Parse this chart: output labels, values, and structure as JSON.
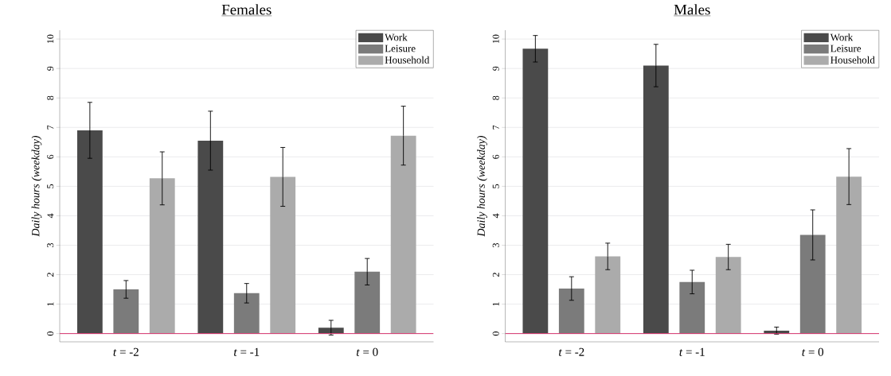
{
  "chart_data": [
    {
      "type": "bar",
      "title": "Females",
      "ylabel": "Daily hours (weekday)",
      "categories": [
        "*t* = -2",
        "*t* = -1",
        "*t* = 0"
      ],
      "series": [
        {
          "name": "Work",
          "color": "#4a4a4a",
          "values": [
            6.9,
            6.55,
            0.2
          ],
          "errors": [
            0.95,
            1.0,
            0.25
          ]
        },
        {
          "name": "Leisure",
          "color": "#7b7b7b",
          "values": [
            1.5,
            1.37,
            2.1
          ],
          "errors": [
            0.3,
            0.33,
            0.45
          ]
        },
        {
          "name": "Household",
          "color": "#ababab",
          "values": [
            5.27,
            5.32,
            6.72
          ],
          "errors": [
            0.9,
            1.0,
            1.0
          ]
        }
      ],
      "ylim": [
        -0.28,
        10.3
      ],
      "yticks": [
        0,
        1,
        2,
        3,
        4,
        5,
        6,
        7,
        8,
        9,
        10
      ],
      "grid": "y",
      "legend": "top right",
      "ref_lines": [
        {
          "axis": "y",
          "value": 0,
          "color": "#d6336c"
        }
      ]
    },
    {
      "type": "bar",
      "title": "Males",
      "ylabel": "Daily hours (weekday)",
      "categories": [
        "*t* = -2",
        "*t* = -1",
        "*t* = 0"
      ],
      "series": [
        {
          "name": "Work",
          "color": "#4a4a4a",
          "values": [
            9.67,
            9.1,
            0.1
          ],
          "errors": [
            0.45,
            0.72,
            0.12
          ]
        },
        {
          "name": "Leisure",
          "color": "#7b7b7b",
          "values": [
            1.53,
            1.75,
            3.35
          ],
          "errors": [
            0.4,
            0.4,
            0.85
          ]
        },
        {
          "name": "Household",
          "color": "#ababab",
          "values": [
            2.62,
            2.6,
            5.33
          ],
          "errors": [
            0.45,
            0.43,
            0.95
          ]
        }
      ],
      "ylim": [
        -0.28,
        10.3
      ],
      "yticks": [
        0,
        1,
        2,
        3,
        4,
        5,
        6,
        7,
        8,
        9,
        10
      ],
      "grid": "y",
      "legend": "top right",
      "ref_lines": [
        {
          "axis": "y",
          "value": 0,
          "color": "#d6336c"
        }
      ]
    }
  ]
}
